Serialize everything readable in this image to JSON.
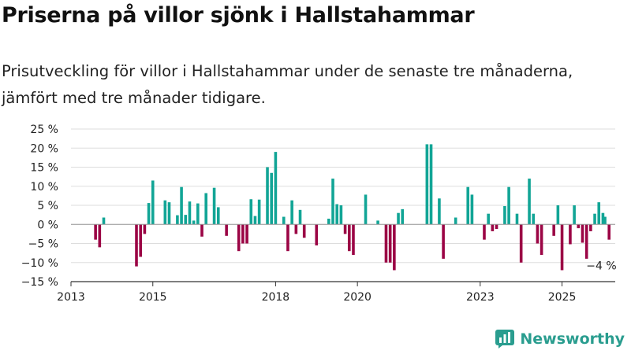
{
  "title": "Priserna på villor sjönk i Hallstahammar",
  "subtitle": "Prisutveckling för villor i Hallstahammar under de senaste tre månaderna, jämfört med tre månader tidigare.",
  "brand": "Newsworthy",
  "colors": {
    "positive": "#12a596",
    "negative": "#9b0545",
    "grid": "#dddddd",
    "axis": "#333333",
    "brand": "#2a9d8f"
  },
  "chart_data": {
    "type": "bar",
    "x_ticks": [
      2013,
      2015,
      2018,
      2020,
      2023,
      2025
    ],
    "y_ticks": [
      25,
      20,
      15,
      10,
      5,
      0,
      -5,
      -10,
      -15
    ],
    "y_tick_labels": [
      "25 %",
      "20 %",
      "15 %",
      "10 %",
      "5 %",
      "0 %",
      "−5 %",
      "−10 %",
      "−15 %"
    ],
    "ylim": [
      -15,
      25
    ],
    "xlim": [
      2013.0,
      2026.3
    ],
    "grid": true,
    "annotation": {
      "text": "−4 %",
      "x": 2025.4,
      "y": -4
    },
    "bars": [
      {
        "x": 2013.6,
        "y": -4
      },
      {
        "x": 2013.7,
        "y": -6
      },
      {
        "x": 2013.8,
        "y": 1.8
      },
      {
        "x": 2014.6,
        "y": -11
      },
      {
        "x": 2014.7,
        "y": -8.5
      },
      {
        "x": 2014.8,
        "y": -2.5
      },
      {
        "x": 2014.9,
        "y": 5.6
      },
      {
        "x": 2015.0,
        "y": 11.5
      },
      {
        "x": 2015.3,
        "y": 6.3
      },
      {
        "x": 2015.4,
        "y": 5.8
      },
      {
        "x": 2015.6,
        "y": 2.4
      },
      {
        "x": 2015.7,
        "y": 9.8
      },
      {
        "x": 2015.8,
        "y": 2.5
      },
      {
        "x": 2015.9,
        "y": 6
      },
      {
        "x": 2016.0,
        "y": 1
      },
      {
        "x": 2016.1,
        "y": 5.5
      },
      {
        "x": 2016.2,
        "y": -3.2
      },
      {
        "x": 2016.3,
        "y": 8.2
      },
      {
        "x": 2016.5,
        "y": 9.6
      },
      {
        "x": 2016.6,
        "y": 4.5
      },
      {
        "x": 2016.8,
        "y": -3
      },
      {
        "x": 2017.1,
        "y": -7
      },
      {
        "x": 2017.2,
        "y": -5
      },
      {
        "x": 2017.3,
        "y": -5
      },
      {
        "x": 2017.4,
        "y": 6.6
      },
      {
        "x": 2017.5,
        "y": 2.2
      },
      {
        "x": 2017.6,
        "y": 6.5
      },
      {
        "x": 2017.8,
        "y": 15
      },
      {
        "x": 2017.9,
        "y": 13.5
      },
      {
        "x": 2018.0,
        "y": 19
      },
      {
        "x": 2018.2,
        "y": 2
      },
      {
        "x": 2018.3,
        "y": -7
      },
      {
        "x": 2018.4,
        "y": 6.3
      },
      {
        "x": 2018.5,
        "y": -2.5
      },
      {
        "x": 2018.6,
        "y": 3.8
      },
      {
        "x": 2018.7,
        "y": -3.5
      },
      {
        "x": 2019.0,
        "y": -5.5
      },
      {
        "x": 2019.3,
        "y": 1.5
      },
      {
        "x": 2019.4,
        "y": 12
      },
      {
        "x": 2019.5,
        "y": 5.3
      },
      {
        "x": 2019.6,
        "y": 5
      },
      {
        "x": 2019.7,
        "y": -2.5
      },
      {
        "x": 2019.8,
        "y": -7
      },
      {
        "x": 2019.9,
        "y": -8
      },
      {
        "x": 2020.2,
        "y": 7.8
      },
      {
        "x": 2020.5,
        "y": 1
      },
      {
        "x": 2020.7,
        "y": -10
      },
      {
        "x": 2020.8,
        "y": -10
      },
      {
        "x": 2020.9,
        "y": -12
      },
      {
        "x": 2021.0,
        "y": 3
      },
      {
        "x": 2021.1,
        "y": 4
      },
      {
        "x": 2021.7,
        "y": 21
      },
      {
        "x": 2021.8,
        "y": 21
      },
      {
        "x": 2022.0,
        "y": 6.8
      },
      {
        "x": 2022.1,
        "y": -9
      },
      {
        "x": 2022.4,
        "y": 1.8
      },
      {
        "x": 2022.7,
        "y": 9.8
      },
      {
        "x": 2022.8,
        "y": 7.8
      },
      {
        "x": 2023.1,
        "y": -4
      },
      {
        "x": 2023.2,
        "y": 2.8
      },
      {
        "x": 2023.3,
        "y": -1.8
      },
      {
        "x": 2023.4,
        "y": -1.2
      },
      {
        "x": 2023.6,
        "y": 4.8
      },
      {
        "x": 2023.7,
        "y": 9.8
      },
      {
        "x": 2023.9,
        "y": 2.8
      },
      {
        "x": 2024.0,
        "y": -10
      },
      {
        "x": 2024.2,
        "y": 12
      },
      {
        "x": 2024.3,
        "y": 2.8
      },
      {
        "x": 2024.4,
        "y": -5
      },
      {
        "x": 2024.5,
        "y": -8
      },
      {
        "x": 2024.8,
        "y": -3
      },
      {
        "x": 2024.9,
        "y": 5
      },
      {
        "x": 2025.0,
        "y": -12
      },
      {
        "x": 2025.2,
        "y": -5.2
      },
      {
        "x": 2025.3,
        "y": 5
      },
      {
        "x": 2025.4,
        "y": -1
      },
      {
        "x": 2025.5,
        "y": -4.8
      },
      {
        "x": 2025.6,
        "y": -9
      },
      {
        "x": 2025.7,
        "y": -1.8
      },
      {
        "x": 2025.8,
        "y": 2.8
      },
      {
        "x": 2025.9,
        "y": 5.8
      },
      {
        "x": 2026.0,
        "y": 3
      },
      {
        "x": 2026.05,
        "y": 2
      },
      {
        "x": 2026.15,
        "y": -4
      }
    ]
  }
}
